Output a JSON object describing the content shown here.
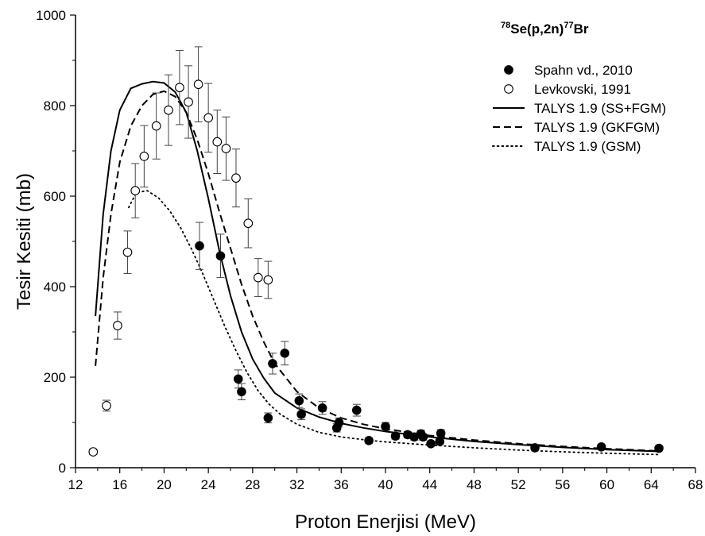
{
  "chart_data": {
    "type": "scatter",
    "title": {
      "mass1": "78",
      "el1": "Se",
      "reaction": "(p,2n)",
      "mass2": "77",
      "el2": "Br"
    },
    "xlabel": "Proton Enerjisi (MeV)",
    "ylabel": "Tesir Kesiti (mb)",
    "xlim": [
      12,
      68
    ],
    "ylim": [
      0,
      1000
    ],
    "xticks": [
      "12",
      "16",
      "20",
      "24",
      "28",
      "32",
      "36",
      "40",
      "44",
      "48",
      "52",
      "56",
      "60",
      "64",
      "68"
    ],
    "yticks": [
      "0",
      "200",
      "400",
      "600",
      "800",
      "1000"
    ],
    "grid": false,
    "legend_position": "top-right",
    "series": [
      {
        "name": "Spahn vd., 2010",
        "kind": "points",
        "marker": "filled-circle",
        "points": [
          [
            23.2,
            490,
            52
          ],
          [
            25.1,
            468,
            48
          ],
          [
            26.7,
            196,
            20
          ],
          [
            27.0,
            168,
            18
          ],
          [
            29.4,
            110,
            11
          ],
          [
            29.8,
            230,
            23
          ],
          [
            30.9,
            253,
            26
          ],
          [
            32.2,
            148,
            15
          ],
          [
            32.4,
            118,
            12
          ],
          [
            34.3,
            132,
            14
          ],
          [
            35.6,
            88,
            9
          ],
          [
            35.8,
            100,
            10
          ],
          [
            37.4,
            127,
            13
          ],
          [
            38.5,
            60,
            6
          ],
          [
            40.0,
            91,
            9
          ],
          [
            40.9,
            70,
            7
          ],
          [
            42.0,
            73,
            7
          ],
          [
            42.6,
            68,
            7
          ],
          [
            43.2,
            75,
            8
          ],
          [
            43.4,
            68,
            7
          ],
          [
            44.1,
            53,
            5
          ],
          [
            44.9,
            58,
            6
          ],
          [
            45.0,
            76,
            8
          ],
          [
            53.5,
            44,
            4
          ],
          [
            59.5,
            46,
            5
          ],
          [
            64.7,
            43,
            4
          ]
        ]
      },
      {
        "name": "Levkovski, 1991",
        "kind": "points",
        "marker": "open-circle",
        "points": [
          [
            13.6,
            35,
            6
          ],
          [
            14.8,
            137,
            12
          ],
          [
            15.8,
            314,
            30
          ],
          [
            16.7,
            476,
            47
          ],
          [
            17.4,
            612,
            60
          ],
          [
            18.2,
            688,
            68
          ],
          [
            19.3,
            755,
            73
          ],
          [
            20.4,
            790,
            78
          ],
          [
            21.4,
            840,
            82
          ],
          [
            22.2,
            808,
            80
          ],
          [
            23.1,
            847,
            83
          ],
          [
            24.0,
            773,
            76
          ],
          [
            24.8,
            720,
            70
          ],
          [
            25.6,
            705,
            70
          ],
          [
            26.5,
            640,
            64
          ],
          [
            27.6,
            540,
            54
          ],
          [
            28.5,
            420,
            42
          ],
          [
            29.4,
            415,
            41
          ]
        ]
      },
      {
        "name": "TALYS 1.9 (SS+FGM)",
        "kind": "line",
        "dash": "solid",
        "points": [
          [
            13.8,
            335
          ],
          [
            14.5,
            560
          ],
          [
            15.2,
            700
          ],
          [
            16.0,
            790
          ],
          [
            17.0,
            838
          ],
          [
            18.0,
            848
          ],
          [
            19.0,
            853
          ],
          [
            20.0,
            850
          ],
          [
            21.0,
            830
          ],
          [
            22.0,
            785
          ],
          [
            23.0,
            700
          ],
          [
            24.0,
            595
          ],
          [
            25.0,
            478
          ],
          [
            26.0,
            380
          ],
          [
            27.0,
            300
          ],
          [
            28.0,
            240
          ],
          [
            29.0,
            198
          ],
          [
            30.0,
            165
          ],
          [
            32.0,
            132
          ],
          [
            34.0,
            112
          ],
          [
            36.0,
            98
          ],
          [
            38.0,
            88
          ],
          [
            40.0,
            80
          ],
          [
            44.0,
            68
          ],
          [
            48.0,
            58
          ],
          [
            52.0,
            51
          ],
          [
            56.0,
            45
          ],
          [
            60.0,
            40
          ],
          [
            64.8,
            36
          ]
        ]
      },
      {
        "name": "TALYS 1.9 (GKFGM)",
        "kind": "line",
        "dash": "dashed",
        "points": [
          [
            13.8,
            225
          ],
          [
            14.5,
            420
          ],
          [
            15.2,
            560
          ],
          [
            16.0,
            675
          ],
          [
            17.0,
            755
          ],
          [
            18.0,
            800
          ],
          [
            19.0,
            825
          ],
          [
            20.0,
            832
          ],
          [
            21.0,
            820
          ],
          [
            22.0,
            785
          ],
          [
            23.0,
            725
          ],
          [
            24.0,
            650
          ],
          [
            25.0,
            565
          ],
          [
            26.0,
            485
          ],
          [
            27.0,
            405
          ],
          [
            28.0,
            335
          ],
          [
            29.0,
            278
          ],
          [
            30.0,
            230
          ],
          [
            32.0,
            168
          ],
          [
            34.0,
            132
          ],
          [
            36.0,
            110
          ],
          [
            38.0,
            96
          ],
          [
            40.0,
            86
          ],
          [
            44.0,
            71
          ],
          [
            48.0,
            61
          ],
          [
            52.0,
            53
          ],
          [
            56.0,
            47
          ],
          [
            60.0,
            42
          ],
          [
            64.8,
            37
          ]
        ]
      },
      {
        "name": "TALYS 1.9 (GSM)",
        "kind": "line",
        "dash": "dotted",
        "points": [
          [
            16.8,
            575
          ],
          [
            17.5,
            608
          ],
          [
            18.5,
            612
          ],
          [
            19.5,
            596
          ],
          [
            20.5,
            568
          ],
          [
            21.5,
            530
          ],
          [
            22.5,
            482
          ],
          [
            23.5,
            428
          ],
          [
            24.5,
            370
          ],
          [
            25.5,
            312
          ],
          [
            26.5,
            258
          ],
          [
            27.5,
            210
          ],
          [
            28.5,
            170
          ],
          [
            29.5,
            140
          ],
          [
            30.5,
            118
          ],
          [
            32.0,
            96
          ],
          [
            34.0,
            78
          ],
          [
            36.0,
            68
          ],
          [
            38.0,
            62
          ],
          [
            40.0,
            57
          ],
          [
            44.0,
            50
          ],
          [
            48.0,
            44
          ],
          [
            52.0,
            39
          ],
          [
            56.0,
            35
          ],
          [
            60.0,
            32
          ],
          [
            64.8,
            29
          ]
        ]
      }
    ]
  }
}
